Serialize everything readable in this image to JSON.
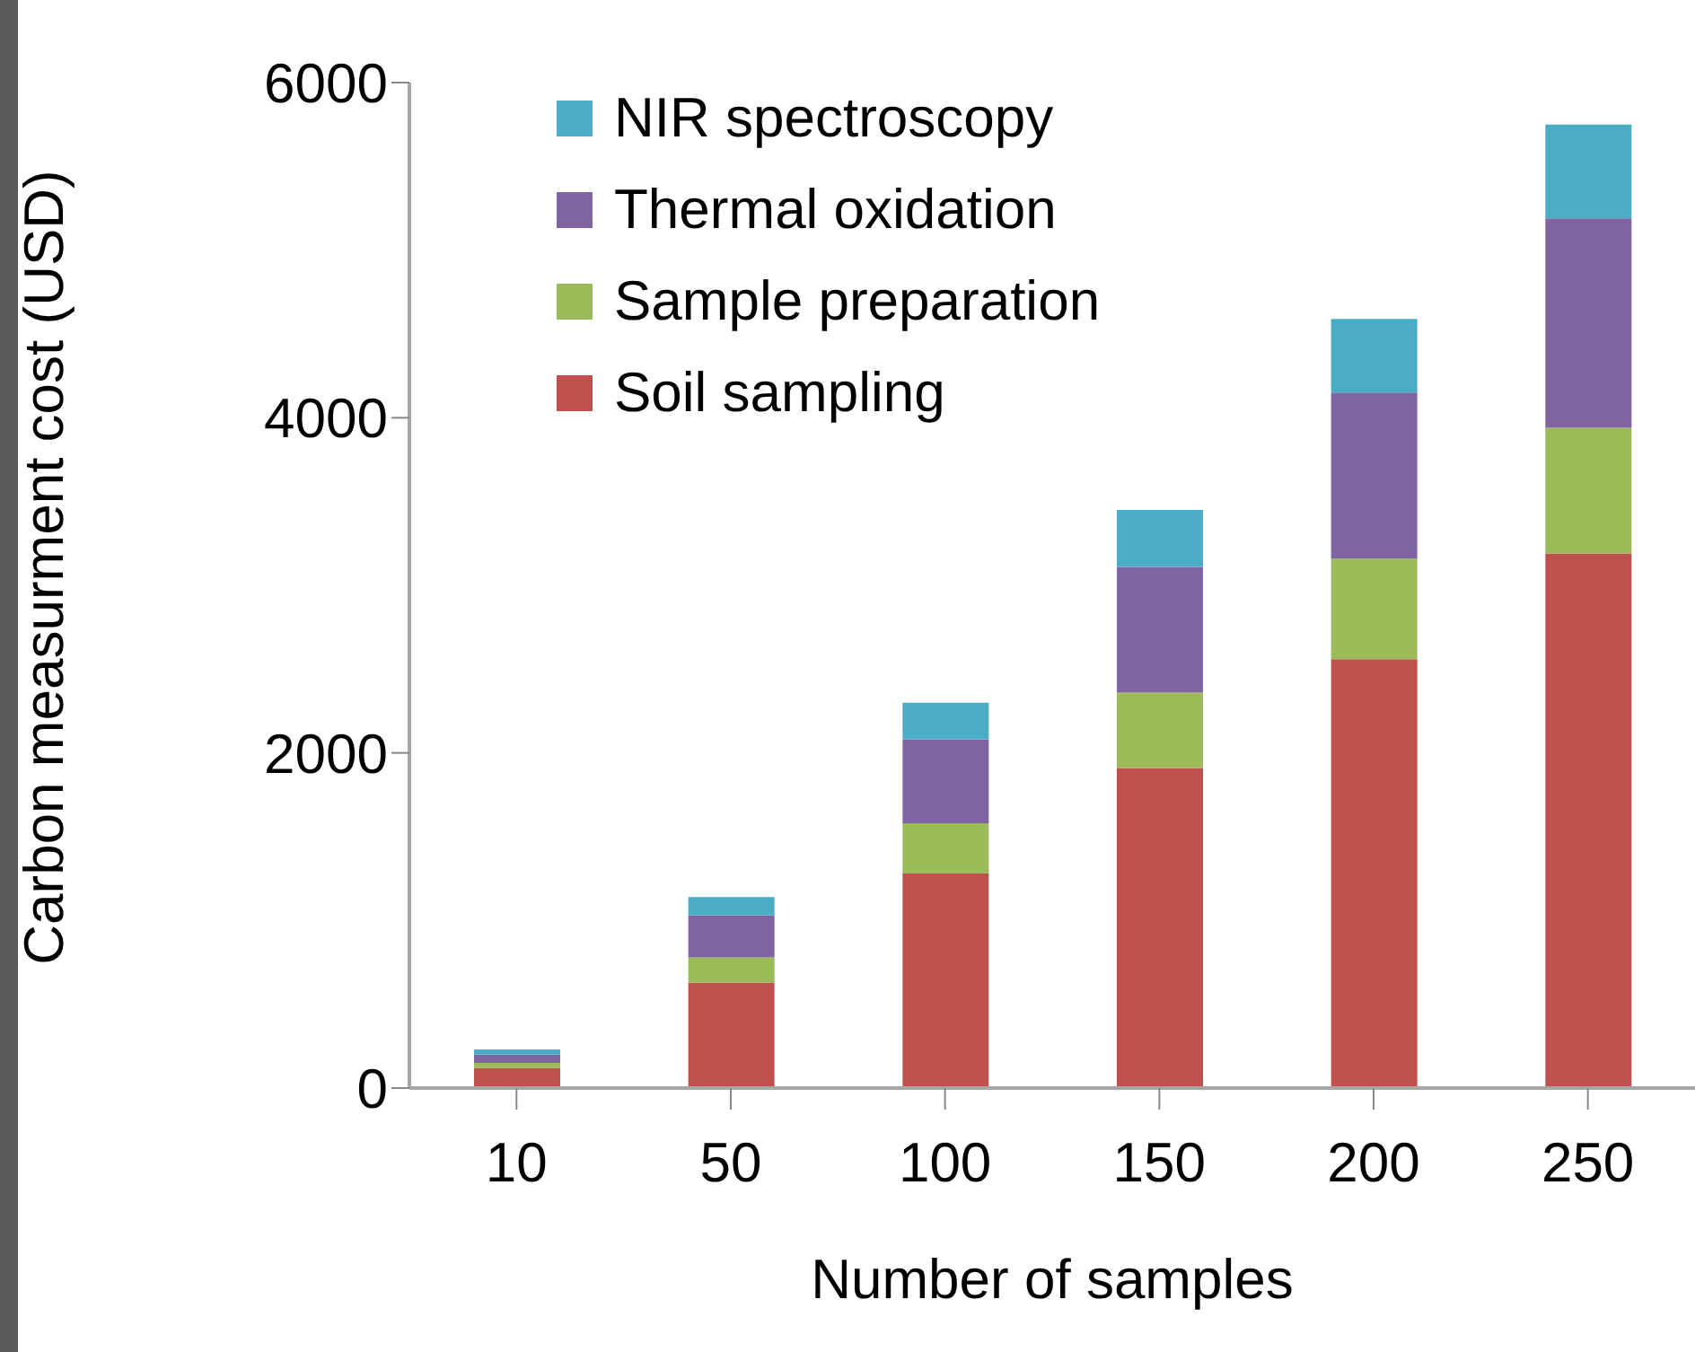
{
  "chart_data": {
    "type": "bar",
    "xlabel": "Number of samples",
    "ylabel": "Carbon measurment cost (USD)",
    "categories": [
      "10",
      "50",
      "100",
      "150",
      "200",
      "250"
    ],
    "stacked": true,
    "ylim": [
      0,
      6000
    ],
    "yticks": [
      0,
      2000,
      4000,
      6000
    ],
    "grid": false,
    "legend": "top left",
    "series": [
      {
        "name": "Soil sampling",
        "color": "#c0504d",
        "values": [
          120,
          630,
          1280,
          1910,
          2560,
          3190
        ]
      },
      {
        "name": "Sample preparation",
        "color": "#9bbb59",
        "values": [
          30,
          150,
          300,
          450,
          600,
          750
        ]
      },
      {
        "name": "Thermal oxidation",
        "color": "#8064a2",
        "values": [
          50,
          250,
          500,
          750,
          990,
          1250
        ]
      },
      {
        "name": "NIR spectroscopy",
        "color": "#4bacc6",
        "values": [
          30,
          110,
          220,
          340,
          440,
          560
        ]
      }
    ]
  }
}
